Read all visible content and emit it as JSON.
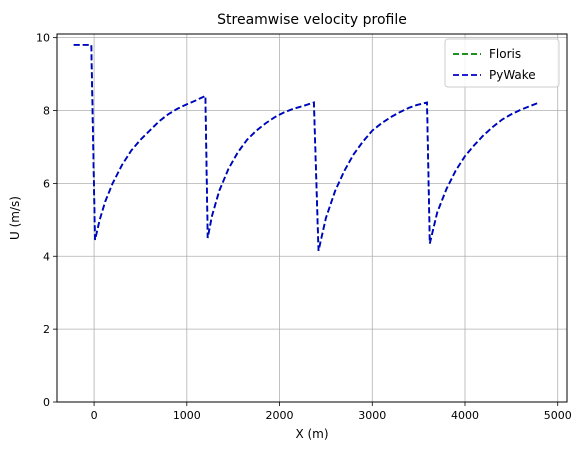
{
  "chart_data": {
    "type": "line",
    "title": "Streamwise velocity profile",
    "xlabel": "X (m)",
    "ylabel": "U (m/s)",
    "xlim": [
      -400,
      5100
    ],
    "ylim": [
      0,
      10.1
    ],
    "xticks": [
      0,
      1000,
      2000,
      3000,
      4000,
      5000
    ],
    "yticks": [
      0,
      2,
      4,
      6,
      8,
      10
    ],
    "grid": true,
    "legend_position": "top-right",
    "series": [
      {
        "name": "Floris",
        "color": "#008000",
        "style": "dashed",
        "x": [
          -220,
          -30,
          10,
          60,
          120,
          200,
          300,
          400,
          500,
          600,
          700,
          800,
          900,
          1000,
          1100,
          1200,
          1225,
          1270,
          1350,
          1450,
          1550,
          1650,
          1750,
          1850,
          1950,
          2050,
          2150,
          2250,
          2370,
          2420,
          2500,
          2600,
          2700,
          2800,
          2900,
          3000,
          3100,
          3200,
          3300,
          3400,
          3480,
          3590,
          3620,
          3700,
          3800,
          3900,
          4000,
          4100,
          4200,
          4300,
          4400,
          4500,
          4600,
          4700,
          4780
        ],
        "y": [
          9.8,
          9.8,
          4.45,
          5.0,
          5.5,
          6.0,
          6.5,
          6.9,
          7.2,
          7.45,
          7.7,
          7.9,
          8.05,
          8.17,
          8.28,
          8.4,
          4.5,
          5.1,
          5.8,
          6.4,
          6.85,
          7.2,
          7.45,
          7.65,
          7.82,
          7.95,
          8.05,
          8.12,
          8.22,
          4.15,
          5.05,
          5.8,
          6.35,
          6.8,
          7.15,
          7.45,
          7.65,
          7.82,
          7.96,
          8.08,
          8.15,
          8.22,
          4.35,
          5.2,
          5.85,
          6.35,
          6.75,
          7.05,
          7.32,
          7.55,
          7.75,
          7.9,
          8.02,
          8.12,
          8.2
        ]
      },
      {
        "name": "PyWake",
        "color": "#0000cc",
        "style": "dashed",
        "x": [
          -220,
          -30,
          10,
          60,
          120,
          200,
          300,
          400,
          500,
          600,
          700,
          800,
          900,
          1000,
          1100,
          1200,
          1225,
          1270,
          1350,
          1450,
          1550,
          1650,
          1750,
          1850,
          1950,
          2050,
          2150,
          2250,
          2370,
          2420,
          2500,
          2600,
          2700,
          2800,
          2900,
          3000,
          3100,
          3200,
          3300,
          3400,
          3480,
          3590,
          3620,
          3700,
          3800,
          3900,
          4000,
          4100,
          4200,
          4300,
          4400,
          4500,
          4600,
          4700,
          4780
        ],
        "y": [
          9.8,
          9.8,
          4.45,
          5.0,
          5.5,
          6.0,
          6.5,
          6.9,
          7.2,
          7.45,
          7.7,
          7.9,
          8.05,
          8.17,
          8.28,
          8.4,
          4.5,
          5.1,
          5.8,
          6.4,
          6.85,
          7.2,
          7.45,
          7.65,
          7.82,
          7.95,
          8.05,
          8.12,
          8.22,
          4.15,
          5.05,
          5.8,
          6.35,
          6.8,
          7.15,
          7.45,
          7.65,
          7.82,
          7.96,
          8.08,
          8.15,
          8.22,
          4.35,
          5.2,
          5.85,
          6.35,
          6.75,
          7.05,
          7.32,
          7.55,
          7.75,
          7.9,
          8.02,
          8.12,
          8.2
        ]
      }
    ]
  }
}
